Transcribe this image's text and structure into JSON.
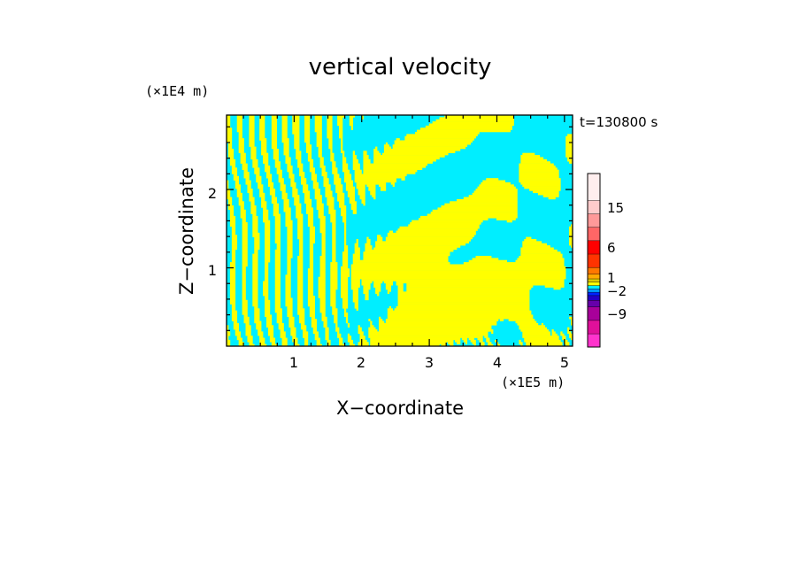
{
  "chart_data": {
    "type": "heatmap",
    "title": "vertical velocity",
    "xlabel": "X−coordinate",
    "ylabel": "Z−coordinate",
    "x_unit": "(×1E5 m)",
    "y_unit": "(×1E4 m)",
    "time_label": "t=130800 s",
    "xlim": [
      0,
      5.12
    ],
    "ylim": [
      0,
      2.95
    ],
    "x_ticks": [
      1,
      2,
      3,
      4,
      5
    ],
    "x_tick_labels": [
      "1",
      "2",
      "3",
      "4",
      "5"
    ],
    "y_ticks": [
      1,
      2
    ],
    "y_tick_labels": [
      "1",
      "2"
    ],
    "colorbar": {
      "levels": [
        "−12",
        "−9",
        "−6",
        "−4",
        "−3",
        "−2",
        "−1",
        "0",
        "0.5",
        "1",
        "2",
        "3",
        "6",
        "9",
        "12",
        "15",
        "18",
        "21"
      ],
      "colors": [
        "#ff33cc",
        "#e0109a",
        "#a8009a",
        "#6600aa",
        "#2200c8",
        "#0022ff",
        "#0099ff",
        "#00eeff",
        "#ffff00",
        "#ddcc00",
        "#ffaa00",
        "#ff7700",
        "#ff3300",
        "#ff0000",
        "#ff6666",
        "#ff9999",
        "#ffcccc",
        "#ffeeee"
      ],
      "tick_labels": [
        {
          "index": 1,
          "text": "−9"
        },
        {
          "index": 5,
          "text": "−2"
        },
        {
          "index": 9,
          "text": "1"
        },
        {
          "index": 12,
          "text": "6"
        },
        {
          "index": 15,
          "text": "15"
        }
      ]
    },
    "field_colors": {
      "negative": "#00eeff",
      "positive": "#ffff00"
    },
    "grid": false,
    "legend": "right colorbar"
  }
}
